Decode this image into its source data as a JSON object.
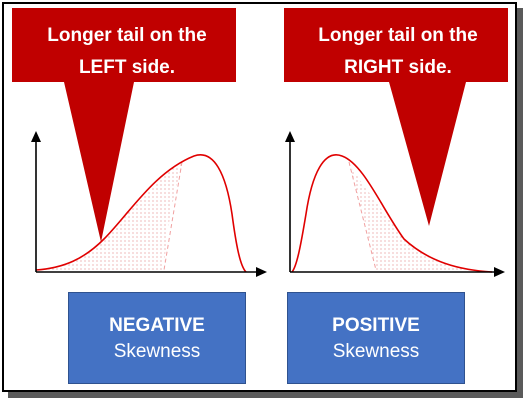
{
  "colors": {
    "callout_fill": "#c00000",
    "curve": "#e00000",
    "box_fill": "#4472c4",
    "shade": "#f2b6b6",
    "axis": "#000000"
  },
  "callouts": {
    "left": {
      "line1": "Longer tail on the",
      "line2": "LEFT side."
    },
    "right": {
      "line1": "Longer tail on the",
      "line2": "RIGHT side."
    }
  },
  "labels": {
    "left": {
      "title": "NEGATIVE",
      "subtitle": "Skewness"
    },
    "right": {
      "title": "POSITIVE",
      "subtitle": "Skewness"
    }
  },
  "icons": [
    "arrow-up-icon",
    "arrow-right-icon"
  ]
}
